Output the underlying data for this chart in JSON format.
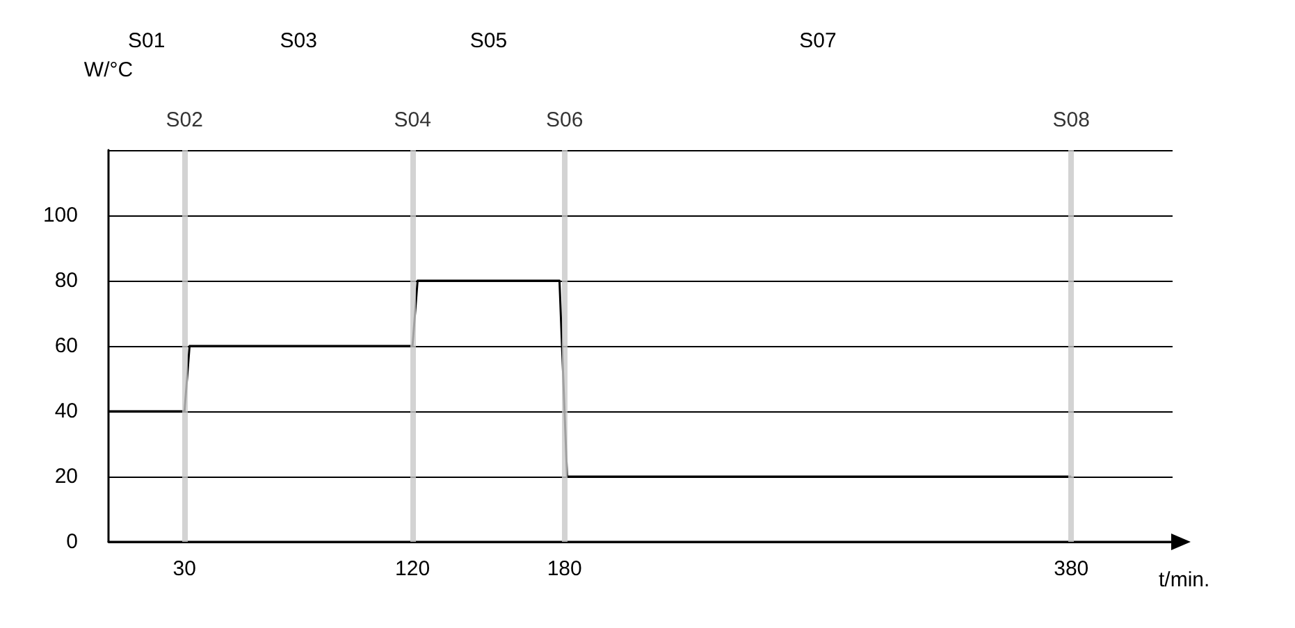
{
  "chart_data": {
    "type": "line",
    "xlabel": "t/min.",
    "ylabel": "W/°C",
    "x": [
      0,
      30,
      32,
      120,
      122,
      178,
      181,
      380
    ],
    "series": [
      {
        "color": "#000000",
        "values": [
          40,
          40,
          60,
          60,
          80,
          80,
          20,
          20
        ]
      }
    ],
    "xlim": [
      0,
      420
    ],
    "xticks": [
      30,
      120,
      180,
      380
    ],
    "ylim": [
      0,
      120
    ],
    "yticks": [
      0,
      20,
      40,
      60,
      80,
      100,
      {
        "value": 120,
        "label": null
      }
    ],
    "grid": "y",
    "marker": "none",
    "line_style": "solid",
    "ref_lines": [
      {
        "axis": "x",
        "value": 30,
        "label": "S02",
        "color": "#c8c8c8"
      },
      {
        "axis": "x",
        "value": 120,
        "label": "S04",
        "color": "#c8c8c8"
      },
      {
        "axis": "x",
        "value": 180,
        "label": "S06",
        "color": "#c8c8c8"
      },
      {
        "axis": "x",
        "value": 380,
        "label": "S08",
        "color": "#c8c8c8"
      }
    ],
    "annotations": [
      "S01",
      "S03",
      "S05",
      "S07"
    ]
  }
}
